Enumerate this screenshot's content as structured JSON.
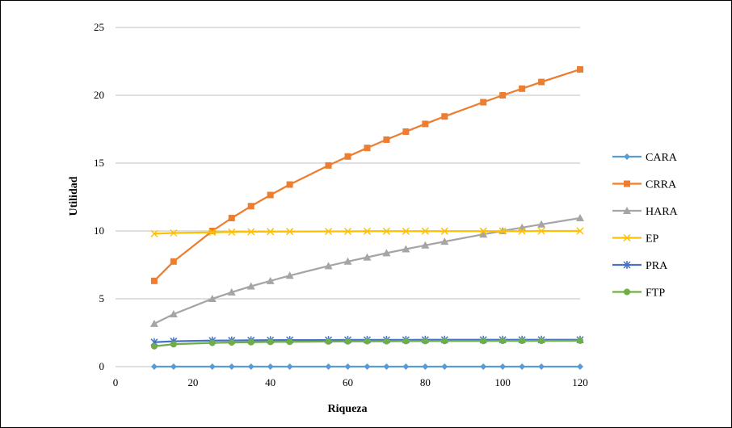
{
  "chart_data": {
    "type": "line",
    "title": "",
    "xlabel": "Riqueza",
    "ylabel": "Utilidad",
    "xlim": [
      0,
      120
    ],
    "ylim": [
      0,
      25
    ],
    "xticks": [
      0,
      20,
      40,
      60,
      80,
      100,
      120
    ],
    "yticks": [
      0,
      5,
      10,
      15,
      20,
      25
    ],
    "grid": "horizontal",
    "legend_position": "right",
    "x": [
      10,
      15,
      25,
      30,
      35,
      40,
      45,
      55,
      60,
      65,
      70,
      75,
      80,
      85,
      95,
      100,
      105,
      110,
      120
    ],
    "series": [
      {
        "name": "CARA",
        "color": "#5b9bd5",
        "marker": "diamond",
        "values": [
          0,
          0,
          0,
          0,
          0,
          0,
          0,
          0,
          0,
          0,
          0,
          0,
          0,
          0,
          0,
          0,
          0,
          0,
          0
        ]
      },
      {
        "name": "CRRA",
        "color": "#ed7d31",
        "marker": "square",
        "values": [
          6.32,
          7.75,
          10.0,
          10.95,
          11.83,
          12.65,
          13.42,
          14.83,
          15.49,
          16.12,
          16.73,
          17.32,
          17.89,
          18.44,
          19.49,
          20.0,
          20.49,
          20.98,
          21.91
        ]
      },
      {
        "name": "HARA",
        "color": "#a5a5a5",
        "marker": "triangle",
        "values": [
          3.16,
          3.87,
          5.0,
          5.48,
          5.92,
          6.32,
          6.71,
          7.42,
          7.75,
          8.06,
          8.37,
          8.66,
          8.94,
          9.22,
          9.75,
          10.0,
          10.25,
          10.49,
          10.95
        ]
      },
      {
        "name": "EP",
        "color": "#ffc000",
        "marker": "x",
        "values": [
          9.8,
          9.85,
          9.9,
          9.92,
          9.94,
          9.95,
          9.96,
          9.97,
          9.97,
          9.98,
          9.98,
          9.98,
          9.99,
          9.99,
          9.99,
          9.99,
          9.99,
          10.0,
          10.0
        ]
      },
      {
        "name": "PRA",
        "color": "#4472c4",
        "marker": "star",
        "values": [
          1.8,
          1.87,
          1.92,
          1.93,
          1.94,
          1.95,
          1.96,
          1.96,
          1.97,
          1.97,
          1.97,
          1.97,
          1.98,
          1.98,
          1.98,
          1.98,
          1.98,
          1.98,
          1.98
        ]
      },
      {
        "name": "FTP",
        "color": "#70ad47",
        "marker": "circle",
        "values": [
          1.5,
          1.65,
          1.75,
          1.78,
          1.8,
          1.82,
          1.83,
          1.85,
          1.86,
          1.87,
          1.87,
          1.88,
          1.88,
          1.89,
          1.89,
          1.9,
          1.9,
          1.9,
          1.91
        ]
      }
    ]
  }
}
